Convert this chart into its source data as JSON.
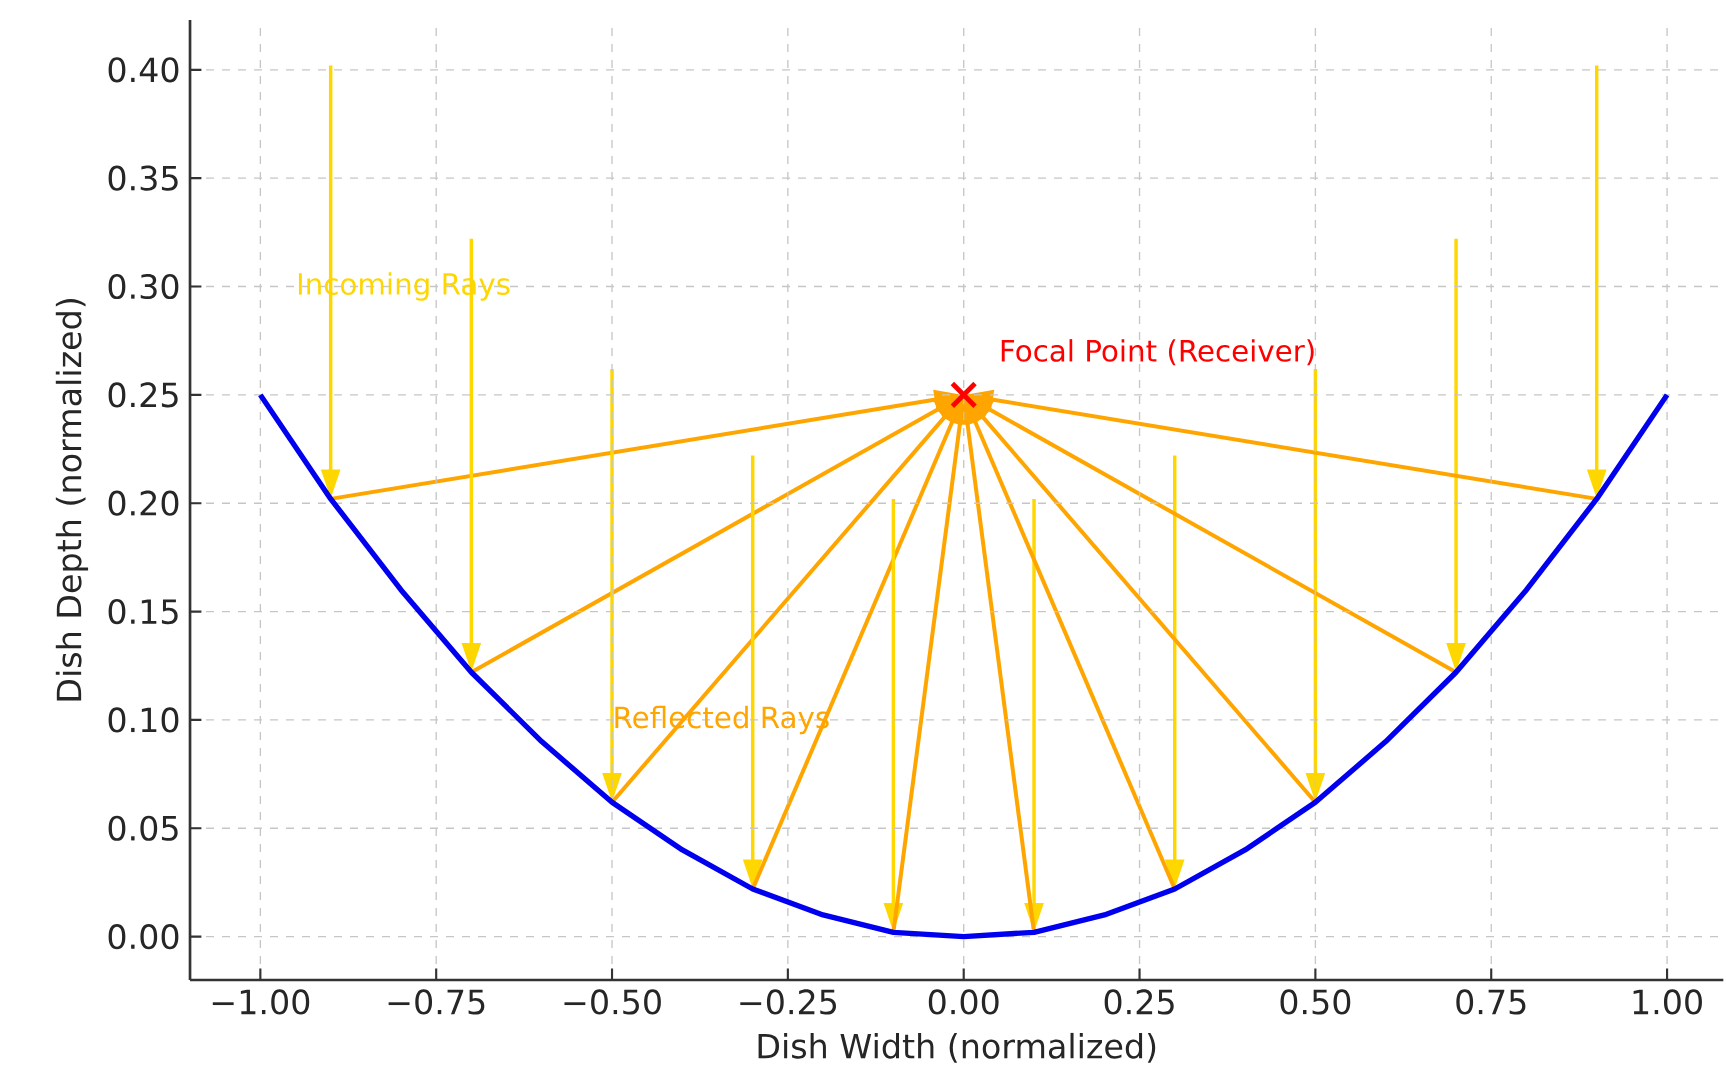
{
  "chart_data": {
    "type": "line",
    "xlabel": "Dish Width (normalized)",
    "ylabel": "Dish Depth (normalized)",
    "xlim": [
      -1.1,
      1.08
    ],
    "ylim": [
      -0.02,
      0.423
    ],
    "xticks": [
      {
        "value": -1.0,
        "label": "−1.00"
      },
      {
        "value": -0.75,
        "label": "−0.75"
      },
      {
        "value": -0.5,
        "label": "−0.50"
      },
      {
        "value": -0.25,
        "label": "−0.25"
      },
      {
        "value": 0,
        "label": "0.00"
      },
      {
        "value": 0.25,
        "label": "0.25"
      },
      {
        "value": 0.5,
        "label": "0.50"
      },
      {
        "value": 0.75,
        "label": "0.75"
      },
      {
        "value": 1.0,
        "label": "1.00"
      }
    ],
    "yticks": [
      {
        "value": 0,
        "label": "0.00"
      },
      {
        "value": 0.05,
        "label": "0.05"
      },
      {
        "value": 0.1,
        "label": "0.10"
      },
      {
        "value": 0.15,
        "label": "0.15"
      },
      {
        "value": 0.2,
        "label": "0.20"
      },
      {
        "value": 0.25,
        "label": "0.25"
      },
      {
        "value": 0.3,
        "label": "0.30"
      },
      {
        "value": 0.35,
        "label": "0.35"
      },
      {
        "value": 0.4,
        "label": "0.40"
      }
    ],
    "grid": true,
    "annotations": [
      "Incoming Rays",
      "Reflected Rays"
    ],
    "series": [
      {
        "color": "#0000ee",
        "x": [
          -1.0,
          -0.9,
          -0.8,
          -0.7,
          -0.6,
          -0.5,
          -0.4,
          -0.3,
          -0.2,
          -0.1,
          0,
          0.1,
          0.2,
          0.3,
          0.4,
          0.5,
          0.6,
          0.7,
          0.8,
          0.9,
          1.0
        ],
        "values": [
          0.25,
          0.202,
          0.16,
          0.122,
          0.09,
          0.062,
          0.04,
          0.022,
          0.01,
          0.002,
          0,
          0.002,
          0.01,
          0.022,
          0.04,
          0.062,
          0.09,
          0.122,
          0.16,
          0.202,
          0.25
        ]
      },
      {
        "name": "Focal Point (Receiver)",
        "type": "scatter",
        "marker": "cross",
        "color": "#ff0000",
        "x": [
          0
        ],
        "values": [
          0.25
        ]
      }
    ]
  }
}
